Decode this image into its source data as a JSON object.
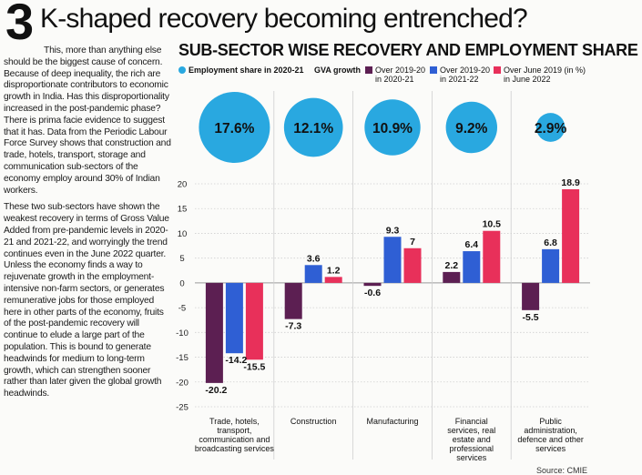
{
  "headline": {
    "number": "3",
    "title": "K-shaped recovery becoming entrenched?"
  },
  "article": {
    "paragraphs": [
      "This, more than anything else should be the biggest cause of concern. Because of deep inequality, the rich are disproportionate contributors to economic growth in India. Has this disproportionality increased in the post-pandemic phase? There is prima facie evidence to suggest that it has. Data from the Periodic Labour Force Survey shows that construction and trade, hotels, transport, storage and communication sub-sectors of the economy employ around 30% of Indian workers.",
      "These two sub-sectors have shown the weakest recovery in terms of Gross Value Added from pre-pandemic levels in 2020-21 and 2021-22, and worryingly the trend continues even in the June 2022 quarter. Unless the economy finds a way to rejuvenate growth in the employment-intensive non-farm sectors, or generates remunerative jobs for those employed here in other parts of the economy, fruits of the post-pandemic recovery will continue to elude a large part of the population. This is bound to generate headwinds for medium to long-term growth, which can strengthen sooner rather than later given the global growth headwinds."
    ]
  },
  "chart_data": {
    "type": "bar",
    "title": "SUB-SECTOR WISE RECOVERY AND EMPLOYMENT SHARE",
    "legend": {
      "employment_label": "Employment share in 2020-21",
      "gva_label": "GVA growth",
      "series_labels": [
        "Over 2019-20 in 2020-21",
        "Over 2019-20 in 2021-22",
        "Over June 2019 (in %) in June 2022"
      ]
    },
    "categories": [
      "Trade, hotels, transport, communication and broadcasting services",
      "Construction",
      "Manufacturing",
      "Financial services, real estate and professional services",
      "Public administration, defence and other services"
    ],
    "category_lines": [
      [
        "Trade, hotels,",
        "transport,",
        "communication and",
        "broadcasting services"
      ],
      [
        "Construction"
      ],
      [
        "Manufacturing"
      ],
      [
        "Financial",
        "services, real",
        "estate and",
        "professional",
        "services"
      ],
      [
        "Public",
        "administration,",
        "defence and other",
        "services"
      ]
    ],
    "employment_share": [
      17.6,
      12.1,
      10.9,
      9.2,
      2.9
    ],
    "employment_share_labels": [
      "17.6%",
      "12.1%",
      "10.9%",
      "9.2%",
      "2.9%"
    ],
    "series": [
      {
        "name": "Over 2019-20 in 2020-21",
        "color": "#5c1f52",
        "values": [
          -20.2,
          -7.3,
          -0.6,
          2.2,
          -5.5
        ]
      },
      {
        "name": "Over 2019-20 in 2021-22",
        "color": "#2f5fd4",
        "values": [
          -14.2,
          3.6,
          9.3,
          6.4,
          6.8
        ]
      },
      {
        "name": "Over June 2019 (in %) in June 2022",
        "color": "#e8305a",
        "values": [
          -15.5,
          1.2,
          7,
          10.5,
          18.9
        ]
      }
    ],
    "value_labels": [
      [
        "-20.2",
        "-14.2",
        "-15.5"
      ],
      [
        "-7.3",
        "3.6",
        "1.2"
      ],
      [
        "-0.6",
        "9.3",
        "7"
      ],
      [
        "2.2",
        "6.4",
        "10.5"
      ],
      [
        "-5.5",
        "6.8",
        "18.9"
      ]
    ],
    "ylim": [
      -25,
      20
    ],
    "yticks": [
      20,
      15,
      10,
      5,
      0,
      -5,
      -10,
      -15,
      -20,
      -25
    ],
    "grid": true,
    "bubble_color": "#29a8e0"
  },
  "source": "Source: CMIE"
}
